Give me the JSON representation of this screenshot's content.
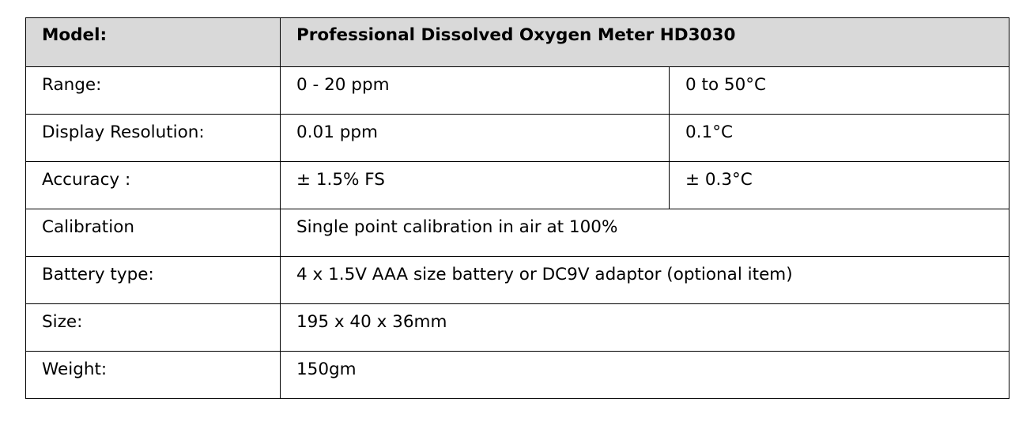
{
  "header": {
    "label": "Model:",
    "value": "Professional Dissolved Oxygen Meter HD3030"
  },
  "rows": [
    {
      "label": "Range:",
      "value": "0 - 20 ppm",
      "temp": "0 to 50°C"
    },
    {
      "label": "Display Resolution:",
      "value": "0.01 ppm",
      "temp": "0.1°C"
    },
    {
      "label": "Accuracy :",
      "value": "± 1.5% FS",
      "temp": "± 0.3°C"
    },
    {
      "label": "Calibration",
      "value": "Single point calibration in air at 100%"
    },
    {
      "label": "Battery type:",
      "value": "4 x 1.5V AAA size battery or DC9V adaptor (optional item)"
    },
    {
      "label": "Size:",
      "value": "195 x 40 x 36mm"
    },
    {
      "label": "Weight:",
      "value": "150gm"
    }
  ],
  "colors": {
    "header_background": "#d9d9d9",
    "border": "#000000"
  }
}
